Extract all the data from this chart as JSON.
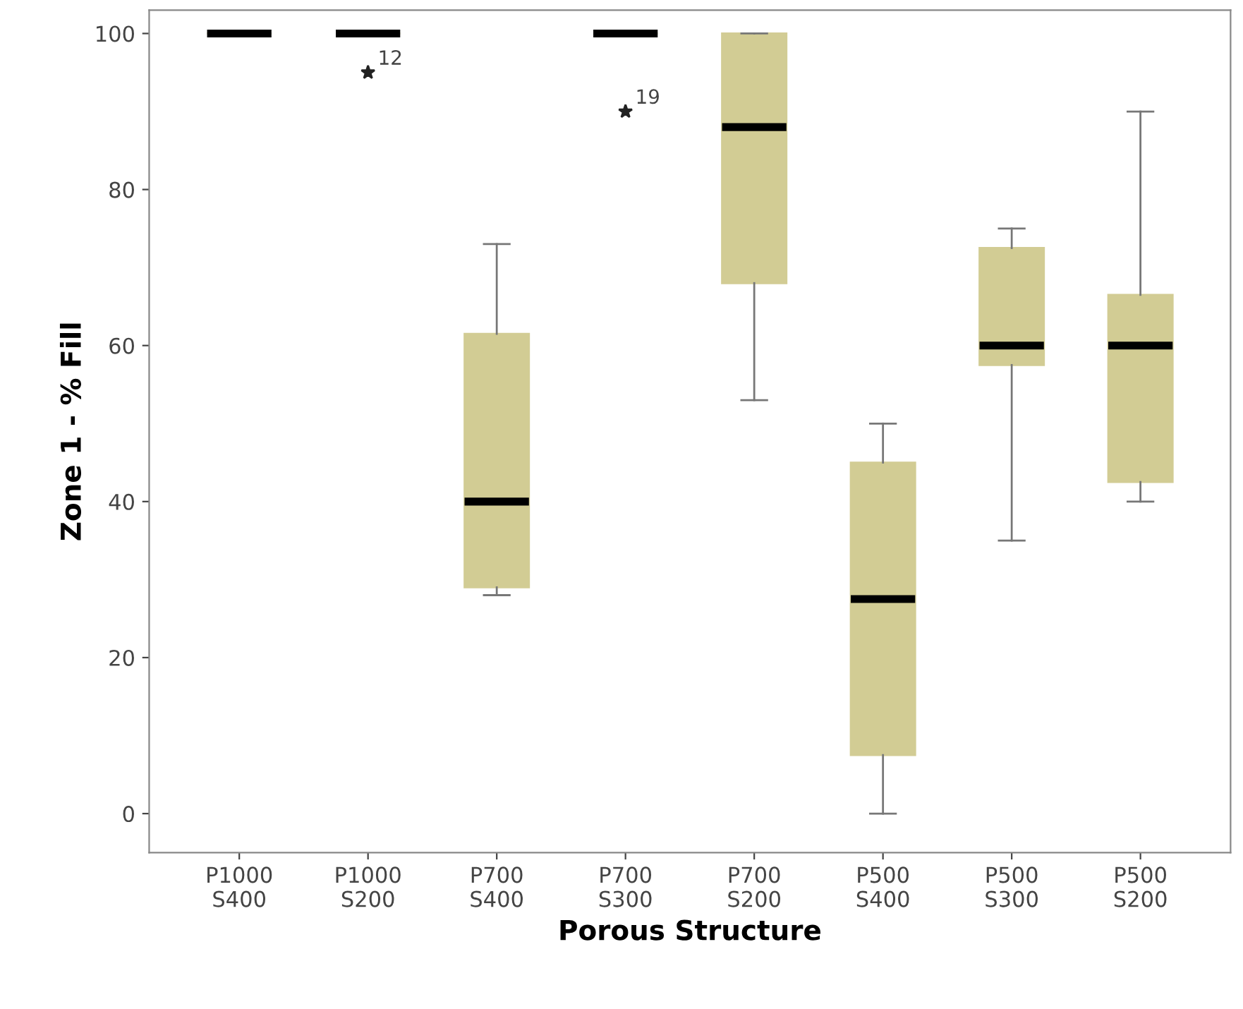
{
  "chart_data": {
    "type": "box",
    "xlabel": "Porous Structure",
    "ylabel": "Zone 1 - % Fill",
    "categories": [
      "P1000\nS400",
      "P1000\nS200",
      "P700\nS400",
      "P700\nS300",
      "P700\nS200",
      "P500\nS400",
      "P500\nS300",
      "P500\nS200"
    ],
    "color": "#d2cc94",
    "boxes": [
      {
        "low": 100,
        "q1": 100,
        "median": 100,
        "q3": 100,
        "high": 100
      },
      {
        "low": 100,
        "q1": 100,
        "median": 100,
        "q3": 100,
        "high": 100,
        "outliers": [
          95
        ]
      },
      {
        "low": 28,
        "q1": 29,
        "median": 40,
        "q3": 61.5,
        "high": 73
      },
      {
        "low": 100,
        "q1": 100,
        "median": 100,
        "q3": 100,
        "high": 100,
        "outliers": [
          90
        ]
      },
      {
        "low": 53,
        "q1": 68,
        "median": 88,
        "q3": 100,
        "high": 100
      },
      {
        "low": 0,
        "q1": 7.5,
        "median": 27.5,
        "q3": 45,
        "high": 50
      },
      {
        "low": 35,
        "q1": 57.5,
        "median": 60,
        "q3": 72.5,
        "high": 75
      },
      {
        "low": 40,
        "q1": 42.5,
        "median": 60,
        "q3": 66.5,
        "high": 90
      }
    ],
    "annotations": [
      "12",
      "19"
    ],
    "marker": "star",
    "ylim": [
      -5,
      103
    ],
    "yticks": [
      0,
      20,
      40,
      60,
      80,
      100
    ],
    "grid": false,
    "legend": false
  }
}
